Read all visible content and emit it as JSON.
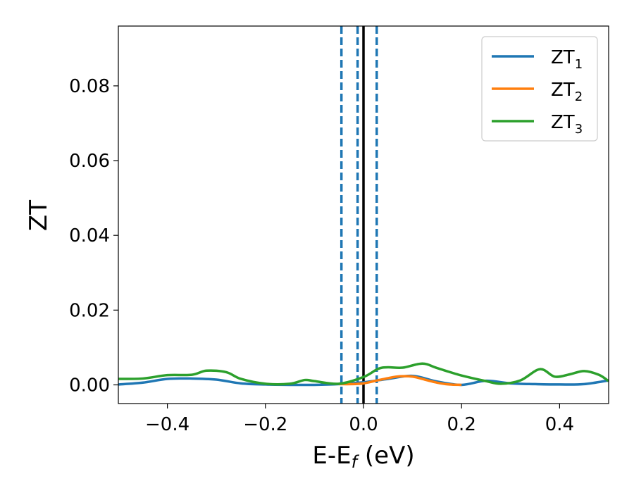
{
  "chart_data": {
    "type": "line",
    "xlabel": "E-E",
    "xlabel_sub": "f",
    "xlabel_unit": " (eV)",
    "ylabel": "ZT",
    "xlim": [
      -0.5,
      0.5
    ],
    "ylim": [
      -0.005,
      0.096
    ],
    "xticks": [
      -0.4,
      -0.2,
      0.0,
      0.2,
      0.4
    ],
    "xtick_labels": [
      "−0.4",
      "−0.2",
      "0.0",
      "0.2",
      "0.4"
    ],
    "yticks": [
      0.0,
      0.02,
      0.04,
      0.06,
      0.08
    ],
    "ytick_labels": [
      "0.00",
      "0.02",
      "0.04",
      "0.06",
      "0.08"
    ],
    "grid": false,
    "legend_position": "top-right",
    "vertical_lines": [
      {
        "x": -0.045,
        "style": "dashed",
        "color": "#1f77b4"
      },
      {
        "x": -0.012,
        "style": "dashed",
        "color": "#1f77b4"
      },
      {
        "x": 0.027,
        "style": "dashed",
        "color": "#1f77b4"
      },
      {
        "x": 0.0,
        "style": "solid",
        "color": "#000000"
      }
    ],
    "series": [
      {
        "name": "ZT",
        "sub": "1",
        "color": "#1f77b4",
        "x": [
          -0.5,
          -0.45,
          -0.4,
          -0.35,
          -0.3,
          -0.25,
          -0.2,
          -0.15,
          -0.1,
          -0.05,
          0.0,
          0.05,
          0.1,
          0.15,
          0.2,
          0.25,
          0.3,
          0.35,
          0.4,
          0.45,
          0.5
        ],
        "y": [
          0.0001,
          0.0006,
          0.0016,
          0.0017,
          0.0014,
          0.0004,
          0.0001,
          0.0,
          0.0,
          0.0002,
          0.0007,
          0.0016,
          0.0024,
          0.0009,
          0.0,
          0.0011,
          0.0004,
          0.0002,
          0.0001,
          0.0002,
          0.0012
        ]
      },
      {
        "name": "ZT",
        "sub": "2",
        "color": "#ff7f0e",
        "x": [
          -0.05,
          -0.025,
          0.0,
          0.025,
          0.05,
          0.075,
          0.1,
          0.125,
          0.15,
          0.175,
          0.2
        ],
        "y": [
          0.0002,
          0.0002,
          0.0004,
          0.0011,
          0.0018,
          0.0023,
          0.0022,
          0.0014,
          0.0006,
          0.0001,
          0.0
        ]
      },
      {
        "name": "ZT",
        "sub": "3",
        "color": "#2ca02c",
        "x": [
          -0.5,
          -0.45,
          -0.4,
          -0.35,
          -0.32,
          -0.28,
          -0.25,
          -0.2,
          -0.15,
          -0.12,
          -0.1,
          -0.05,
          0.0,
          0.03,
          0.05,
          0.08,
          0.12,
          0.15,
          0.2,
          0.25,
          0.28,
          0.32,
          0.36,
          0.39,
          0.42,
          0.45,
          0.48,
          0.5
        ],
        "y": [
          0.0016,
          0.0017,
          0.0026,
          0.0027,
          0.0038,
          0.0034,
          0.0016,
          0.0003,
          0.0003,
          0.0013,
          0.001,
          0.0003,
          0.0021,
          0.0043,
          0.0047,
          0.0046,
          0.0057,
          0.0045,
          0.0025,
          0.001,
          0.0003,
          0.0012,
          0.0042,
          0.0022,
          0.0028,
          0.0037,
          0.0027,
          0.001
        ]
      }
    ]
  }
}
